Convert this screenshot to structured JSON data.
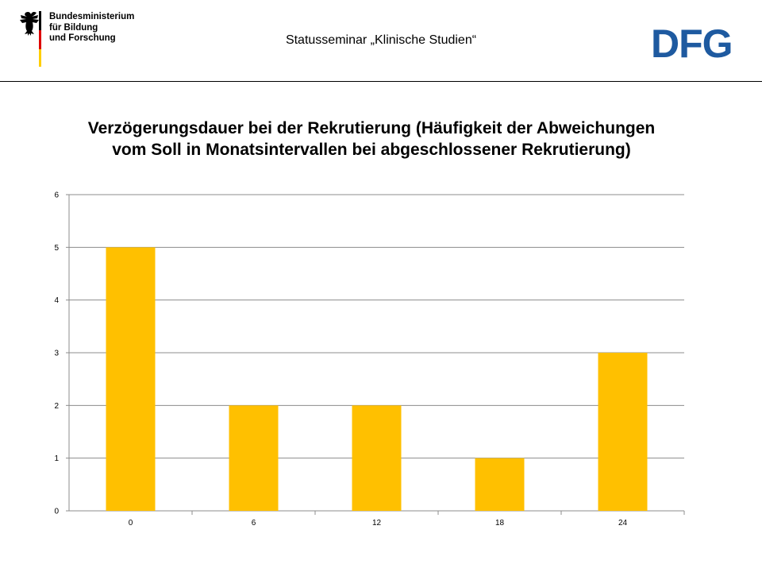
{
  "header": {
    "ministry_lines": [
      "Bundesministerium",
      "für Bildung",
      "und Forschung"
    ],
    "seminar_title": "Statusseminar „Klinische Studien“",
    "dfg_logo_text": "DFG"
  },
  "colors": {
    "bar": "#ffc000",
    "gridline": "#8c8c8c",
    "dfg_blue": "#1e5aa0",
    "flag_black": "#000000",
    "flag_red": "#dd0000",
    "flag_gold": "#ffce00"
  },
  "chart_data": {
    "type": "bar",
    "title": "Verzögerungsdauer bei der Rekrutierung (Häufigkeit der Abweichungen vom Soll in Monatsintervallen bei abgeschlossener Rekrutierung)",
    "categories": [
      "0",
      "6",
      "12",
      "18",
      "24"
    ],
    "values": [
      5,
      2,
      2,
      1,
      3
    ],
    "xlabel": "",
    "ylabel": "",
    "ylim": [
      0,
      6
    ],
    "yticks": [
      "0",
      "1",
      "2",
      "3",
      "4",
      "5",
      "6"
    ],
    "grid": true,
    "legend": "none"
  }
}
